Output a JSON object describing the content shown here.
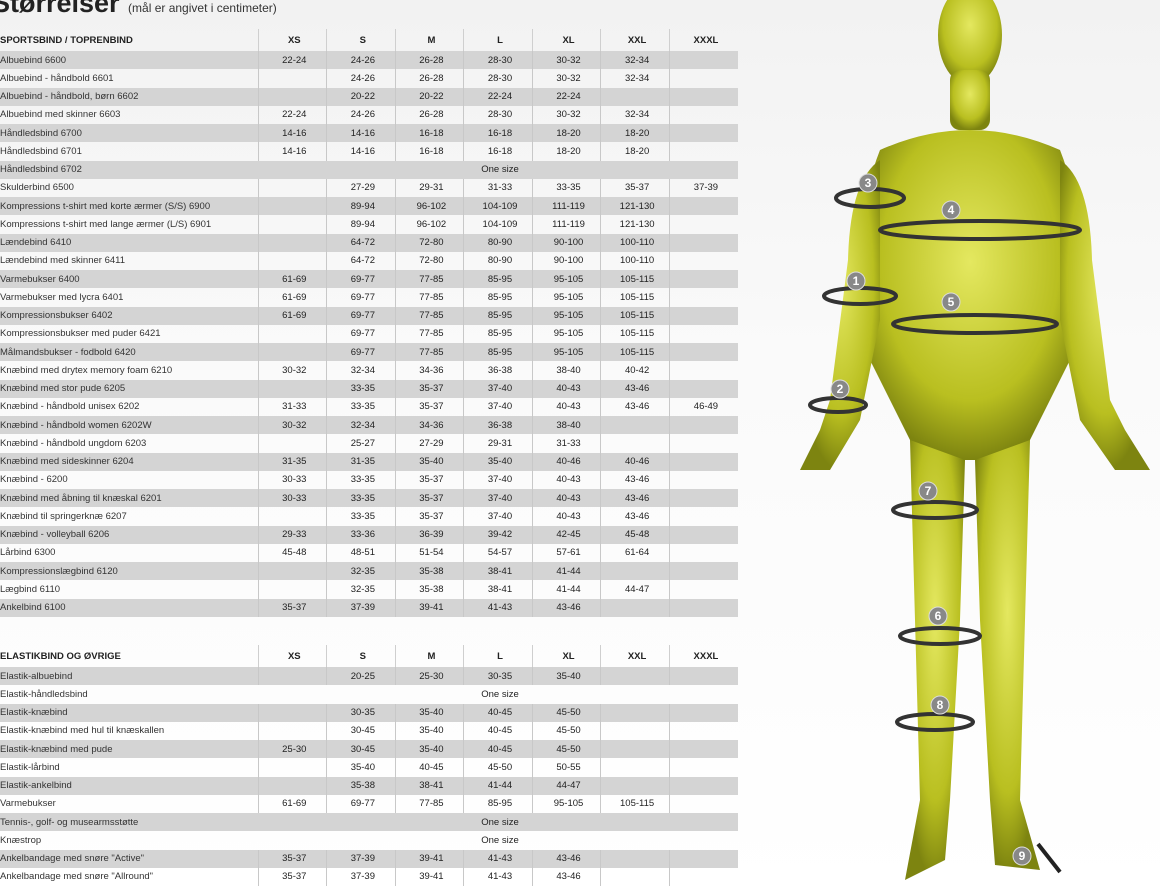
{
  "title": "Størrelser",
  "subtitle": "(mål er angivet i centimeter)",
  "sizes": [
    "XS",
    "S",
    "M",
    "L",
    "XL",
    "XXL",
    "XXXL"
  ],
  "table1": {
    "header": "SPORTSBIND / TOPRENBIND",
    "rows": [
      [
        "Albuebind 6600",
        "22-24",
        "24-26",
        "26-28",
        "28-30",
        "30-32",
        "32-34",
        ""
      ],
      [
        "Albuebind - håndbold 6601",
        "",
        "24-26",
        "26-28",
        "28-30",
        "30-32",
        "32-34",
        ""
      ],
      [
        "Albuebind - håndbold, børn 6602",
        "",
        "20-22",
        "20-22",
        "22-24",
        "22-24",
        "",
        ""
      ],
      [
        "Albuebind med skinner 6603",
        "22-24",
        "24-26",
        "26-28",
        "28-30",
        "30-32",
        "32-34",
        ""
      ],
      [
        "Håndledsbind 6700",
        "14-16",
        "14-16",
        "16-18",
        "16-18",
        "18-20",
        "18-20",
        ""
      ],
      [
        "Håndledsbind 6701",
        "14-16",
        "14-16",
        "16-18",
        "16-18",
        "18-20",
        "18-20",
        ""
      ],
      [
        "Håndledsbind 6702",
        "One size"
      ],
      [
        "Skulderbind 6500",
        "",
        "27-29",
        "29-31",
        "31-33",
        "33-35",
        "35-37",
        "37-39"
      ],
      [
        "Kompressions t-shirt med korte ærmer (S/S) 6900",
        "",
        "89-94",
        "96-102",
        "104-109",
        "111-119",
        "121-130",
        ""
      ],
      [
        "Kompressions t-shirt med lange ærmer (L/S) 6901",
        "",
        "89-94",
        "96-102",
        "104-109",
        "111-119",
        "121-130",
        ""
      ],
      [
        "Lændebind 6410",
        "",
        "64-72",
        "72-80",
        "80-90",
        "90-100",
        "100-110",
        ""
      ],
      [
        "Lændebind med skinner 6411",
        "",
        "64-72",
        "72-80",
        "80-90",
        "90-100",
        "100-110",
        ""
      ],
      [
        "Varmebukser 6400",
        "61-69",
        "69-77",
        "77-85",
        "85-95",
        "95-105",
        "105-115",
        ""
      ],
      [
        "Varmebukser med lycra 6401",
        "61-69",
        "69-77",
        "77-85",
        "85-95",
        "95-105",
        "105-115",
        ""
      ],
      [
        "Kompressionsbukser 6402",
        "61-69",
        "69-77",
        "77-85",
        "85-95",
        "95-105",
        "105-115",
        ""
      ],
      [
        "Kompressionsbukser med puder 6421",
        "",
        "69-77",
        "77-85",
        "85-95",
        "95-105",
        "105-115",
        ""
      ],
      [
        "Målmandsbukser - fodbold 6420",
        "",
        "69-77",
        "77-85",
        "85-95",
        "95-105",
        "105-115",
        ""
      ],
      [
        "Knæbind med drytex memory foam 6210",
        "30-32",
        "32-34",
        "34-36",
        "36-38",
        "38-40",
        "40-42",
        ""
      ],
      [
        "Knæbind med stor pude 6205",
        "",
        "33-35",
        "35-37",
        "37-40",
        "40-43",
        "43-46",
        ""
      ],
      [
        "Knæbind - håndbold unisex 6202",
        "31-33",
        "33-35",
        "35-37",
        "37-40",
        "40-43",
        "43-46",
        "46-49"
      ],
      [
        "Knæbind - håndbold women 6202W",
        "30-32",
        "32-34",
        "34-36",
        "36-38",
        "38-40",
        "",
        ""
      ],
      [
        "Knæbind - håndbold ungdom 6203",
        "",
        "25-27",
        "27-29",
        "29-31",
        "31-33",
        "",
        ""
      ],
      [
        "Knæbind med sideskinner 6204",
        "31-35",
        "31-35",
        "35-40",
        "35-40",
        "40-46",
        "40-46",
        ""
      ],
      [
        "Knæbind - 6200",
        "30-33",
        "33-35",
        "35-37",
        "37-40",
        "40-43",
        "43-46",
        ""
      ],
      [
        "Knæbind med åbning til knæskal 6201",
        "30-33",
        "33-35",
        "35-37",
        "37-40",
        "40-43",
        "43-46",
        ""
      ],
      [
        "Knæbind til springerknæ 6207",
        "",
        "33-35",
        "35-37",
        "37-40",
        "40-43",
        "43-46",
        ""
      ],
      [
        "Knæbind - volleyball 6206",
        "29-33",
        "33-36",
        "36-39",
        "39-42",
        "42-45",
        "45-48",
        ""
      ],
      [
        "Lårbind 6300",
        "45-48",
        "48-51",
        "51-54",
        "54-57",
        "57-61",
        "61-64",
        ""
      ],
      [
        "Kompressionslægbind 6120",
        "",
        "32-35",
        "35-38",
        "38-41",
        "41-44",
        "",
        ""
      ],
      [
        "Lægbind 6110",
        "",
        "32-35",
        "35-38",
        "38-41",
        "41-44",
        "44-47",
        ""
      ],
      [
        "Ankelbind 6100",
        "35-37",
        "37-39",
        "39-41",
        "41-43",
        "43-46",
        "",
        ""
      ]
    ]
  },
  "table2": {
    "header": "ELASTIKBIND OG ØVRIGE",
    "rows": [
      [
        "Elastik-albuebind",
        "",
        "20-25",
        "25-30",
        "30-35",
        "35-40",
        "",
        ""
      ],
      [
        "Elastik-håndledsbind",
        "One size"
      ],
      [
        "Elastik-knæbind",
        "",
        "30-35",
        "35-40",
        "40-45",
        "45-50",
        "",
        ""
      ],
      [
        "Elastik-knæbind med hul til knæskallen",
        "",
        "30-45",
        "35-40",
        "40-45",
        "45-50",
        "",
        ""
      ],
      [
        "Elastik-knæbind med pude",
        "25-30",
        "30-45",
        "35-40",
        "40-45",
        "45-50",
        "",
        ""
      ],
      [
        "Elastik-lårbind",
        "",
        "35-40",
        "40-45",
        "45-50",
        "50-55",
        "",
        ""
      ],
      [
        "Elastik-ankelbind",
        "",
        "35-38",
        "38-41",
        "41-44",
        "44-47",
        "",
        ""
      ],
      [
        "Varmebukser",
        "61-69",
        "69-77",
        "77-85",
        "85-95",
        "95-105",
        "105-115",
        ""
      ],
      [
        "Tennis-, golf- og musearmsstøtte",
        "One size"
      ],
      [
        "Knæstrop",
        "One size"
      ],
      [
        "Ankelbandage med snøre \"Active\"",
        "35-37",
        "37-39",
        "39-41",
        "41-43",
        "43-46",
        "",
        ""
      ],
      [
        "Ankelbandage med snøre \"Allround\"",
        "35-37",
        "37-39",
        "39-41",
        "41-43",
        "43-46",
        "",
        ""
      ]
    ]
  },
  "figure": {
    "markers": [
      "1",
      "2",
      "3",
      "4",
      "5",
      "6",
      "7",
      "8",
      "9"
    ],
    "skin_color": "#c8cc2a"
  }
}
